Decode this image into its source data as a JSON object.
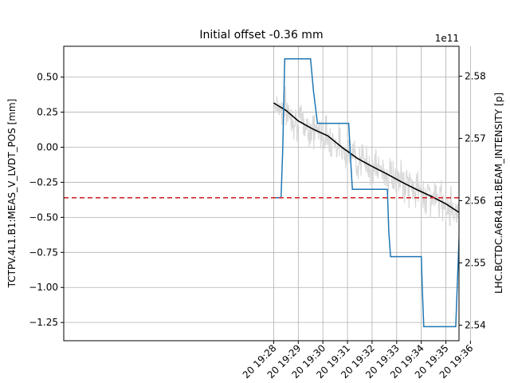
{
  "chart_data": {
    "type": "line",
    "title": "Initial offset -0.36 mm",
    "xlabel": "",
    "ylabel_left": "TCTPV.4L1.B1:MEAS_V_LVDT_POS [mm]",
    "ylabel_right": "LHC.BCTDC.A6R4.B1:BEAM_INTENSITY [p]",
    "right_offset_text": "1e11",
    "grid": true,
    "x_range_minutes": [
      19.4667,
      35.5333
    ],
    "x_tick_values": [
      28,
      29,
      30,
      31,
      32,
      33,
      34,
      35,
      36
    ],
    "x_tick_labels": [
      "20 19:28",
      "20 19:29",
      "20 19:30",
      "20 19:31",
      "20 19:32",
      "20 19:33",
      "20 19:34",
      "20 19:35",
      "20 19:36"
    ],
    "ylim_left": [
      -1.38,
      0.72
    ],
    "y_ticks_left": [
      0.5,
      0.25,
      0.0,
      -0.25,
      -0.5,
      -0.75,
      -1.0,
      -1.25
    ],
    "y_tick_labels_left": [
      "0.50",
      "0.25",
      "0.00",
      "−0.25",
      "−0.50",
      "−0.75",
      "−1.00",
      "−1.25"
    ],
    "ylim_right": [
      2.5375,
      2.5848
    ],
    "y_ticks_right": [
      2.58,
      2.57,
      2.56,
      2.55,
      2.54
    ],
    "y_tick_labels_right": [
      "2.58",
      "2.57",
      "2.56",
      "2.55",
      "2.54"
    ],
    "series": [
      {
        "role": "position",
        "axis": "left",
        "color": "#1f77b4",
        "x": [
          28.0,
          28.3,
          28.37,
          28.45,
          29.5,
          29.62,
          29.78,
          31.05,
          31.13,
          31.2,
          32.62,
          32.68,
          32.75,
          34.0,
          34.04,
          34.1,
          35.4,
          35.48,
          35.6,
          35.95
        ],
        "y": [
          -0.36,
          -0.36,
          0.0,
          0.63,
          0.63,
          0.4,
          0.17,
          0.17,
          -0.1,
          -0.3,
          -0.3,
          -0.6,
          -0.78,
          -0.78,
          -1.0,
          -1.28,
          -1.28,
          -0.9,
          -0.36,
          -0.36
        ]
      },
      {
        "role": "intensity-smoothed",
        "axis": "right",
        "color": "#000000",
        "x": [
          28.0,
          28.5,
          29.0,
          29.6,
          30.2,
          30.8,
          31.4,
          32.0,
          32.6,
          33.2,
          33.8,
          34.4,
          35.0,
          35.5,
          35.95
        ],
        "y": [
          2.5757,
          2.5745,
          2.5728,
          2.5715,
          2.5704,
          2.5685,
          2.5668,
          2.5655,
          2.5643,
          2.563,
          2.5618,
          2.5607,
          2.5595,
          2.5582,
          2.5577
        ]
      },
      {
        "role": "intensity-raw",
        "axis": "right",
        "color": "#d9d9d9",
        "noise_seed": 7,
        "noise_amplitude": 0.0045,
        "samples": 420
      },
      {
        "role": "initial-offset",
        "axis": "left",
        "color": "#d62728",
        "style": "dashed",
        "value": -0.36
      }
    ]
  }
}
